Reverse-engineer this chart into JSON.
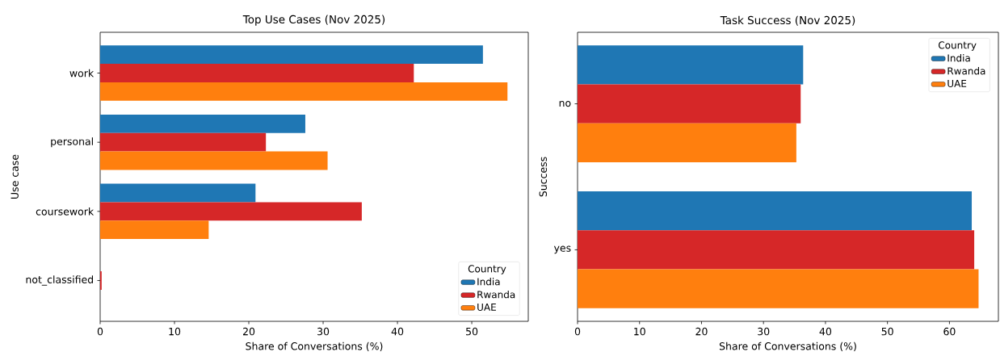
{
  "chart_data": [
    {
      "type": "bar",
      "orientation": "horizontal",
      "title": "Top Use Cases (Nov 2025)",
      "xlabel": "Share of Conversations (%)",
      "ylabel": "Use case",
      "legend_title": "Country",
      "legend": "bottom right",
      "categories": [
        "work",
        "personal",
        "coursework",
        "not_classified"
      ],
      "xlim": [
        0,
        57.6
      ],
      "xticks": [
        0,
        10,
        20,
        30,
        40,
        50
      ],
      "series": [
        {
          "name": "India",
          "color": "#1f77b4",
          "values": [
            51.5,
            27.6,
            20.9,
            0
          ]
        },
        {
          "name": "Rwanda",
          "color": "#d62728",
          "values": [
            42.2,
            22.3,
            35.2,
            0.2
          ]
        },
        {
          "name": "UAE",
          "color": "#ff7f0e",
          "values": [
            54.8,
            30.6,
            14.6,
            0
          ]
        }
      ]
    },
    {
      "type": "bar",
      "orientation": "horizontal",
      "title": "Task Success (Nov 2025)",
      "xlabel": "Share of Conversations (%)",
      "ylabel": "Success",
      "legend_title": "Country",
      "legend": "top right",
      "categories": [
        "no",
        "yes"
      ],
      "xlim": [
        0,
        67.9
      ],
      "xticks": [
        0,
        10,
        20,
        30,
        40,
        50,
        60
      ],
      "series": [
        {
          "name": "India",
          "color": "#1f77b4",
          "values": [
            36.4,
            63.6
          ]
        },
        {
          "name": "Rwanda",
          "color": "#d62728",
          "values": [
            36.0,
            64.0
          ]
        },
        {
          "name": "UAE",
          "color": "#ff7f0e",
          "values": [
            35.3,
            64.7
          ]
        }
      ]
    }
  ]
}
